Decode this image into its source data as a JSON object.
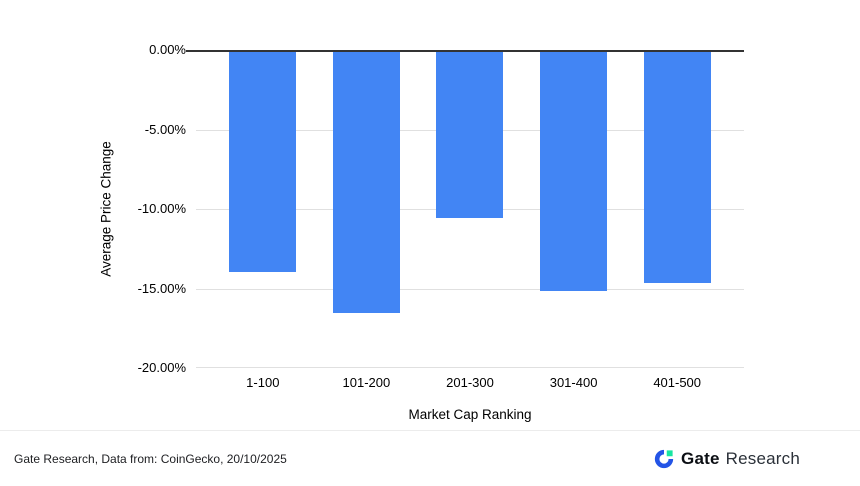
{
  "chart_data": {
    "type": "bar",
    "title": "",
    "categories": [
      "1-100",
      "101-200",
      "201-300",
      "301-400",
      "401-500"
    ],
    "values": [
      -13.9,
      -16.5,
      -10.5,
      -15.1,
      -14.6
    ],
    "xlabel": "Market Cap Ranking",
    "ylabel": "Average Price Change",
    "ylim": [
      0,
      -20
    ],
    "ytick_values": [
      0,
      -5,
      -10,
      -15,
      -20
    ],
    "ytick_labels": [
      "0.00%",
      "-5.00%",
      "-10.00%",
      "-15.00%",
      "-20.00%"
    ],
    "grid": true,
    "legend_position": "none",
    "bar_color": "#4285F4",
    "axis_line_color": "#333333",
    "gridline_color": "#e0e0e0"
  },
  "footer": {
    "source_text": "Gate Research, Data from: CoinGecko, 20/10/2025",
    "brand": {
      "bold": "Gate",
      "regular": "Research",
      "logo_blue": "#2354E6",
      "logo_green": "#17E6A1"
    }
  }
}
